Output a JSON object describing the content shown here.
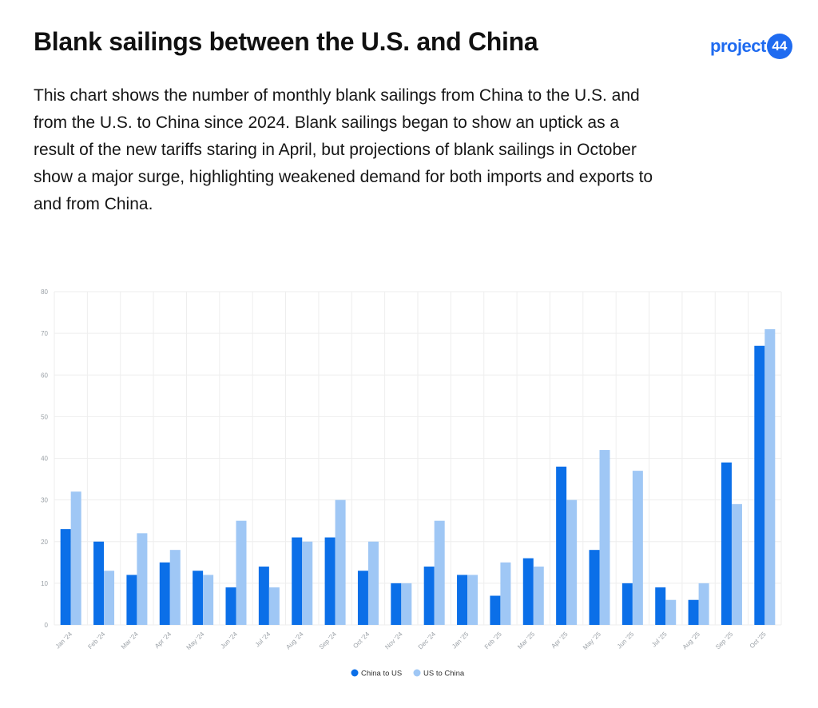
{
  "header": {
    "title": "Blank sailings between the U.S. and China",
    "logo_text": "project",
    "logo_badge": "44",
    "description": "This chart shows the number of monthly blank sailings from China to the U.S. and from the U.S. to China since 2024. Blank sailings began to show an uptick as a result of the new tariffs staring in April, but projections of blank sailings in October show a major surge, highlighting weakened demand for both imports and exports to and from China."
  },
  "colors": {
    "series_1": "#0b6fe8",
    "series_2": "#9fc7f5",
    "brand": "#1f6bf0",
    "grid": "#eeeeee"
  },
  "chart_data": {
    "type": "bar",
    "title": "",
    "xlabel": "",
    "ylabel": "",
    "ylim": [
      0,
      80
    ],
    "yticks": [
      0,
      10,
      20,
      30,
      40,
      50,
      60,
      70,
      80
    ],
    "grid": true,
    "legend_position": "bottom-center",
    "categories": [
      "Jan '24",
      "Feb '24",
      "Mar '24",
      "Apr '24",
      "May '24",
      "Jun '24",
      "Jul '24",
      "Aug '24",
      "Sep '24",
      "Oct '24",
      "Nov '24",
      "Dec '24",
      "Jan '25",
      "Feb '25",
      "Mar '25",
      "Apr '25",
      "May '25",
      "Jun '25",
      "Jul '25",
      "Aug '25",
      "Sep '25",
      "Oct '25"
    ],
    "series": [
      {
        "name": "China to US",
        "values": [
          23,
          20,
          12,
          15,
          13,
          9,
          14,
          21,
          21,
          13,
          10,
          14,
          12,
          7,
          16,
          38,
          18,
          10,
          9,
          6,
          39,
          67
        ]
      },
      {
        "name": "US to China",
        "values": [
          32,
          13,
          22,
          18,
          12,
          25,
          9,
          20,
          30,
          20,
          10,
          25,
          12,
          15,
          14,
          30,
          42,
          37,
          6,
          10,
          29,
          71
        ]
      }
    ]
  }
}
